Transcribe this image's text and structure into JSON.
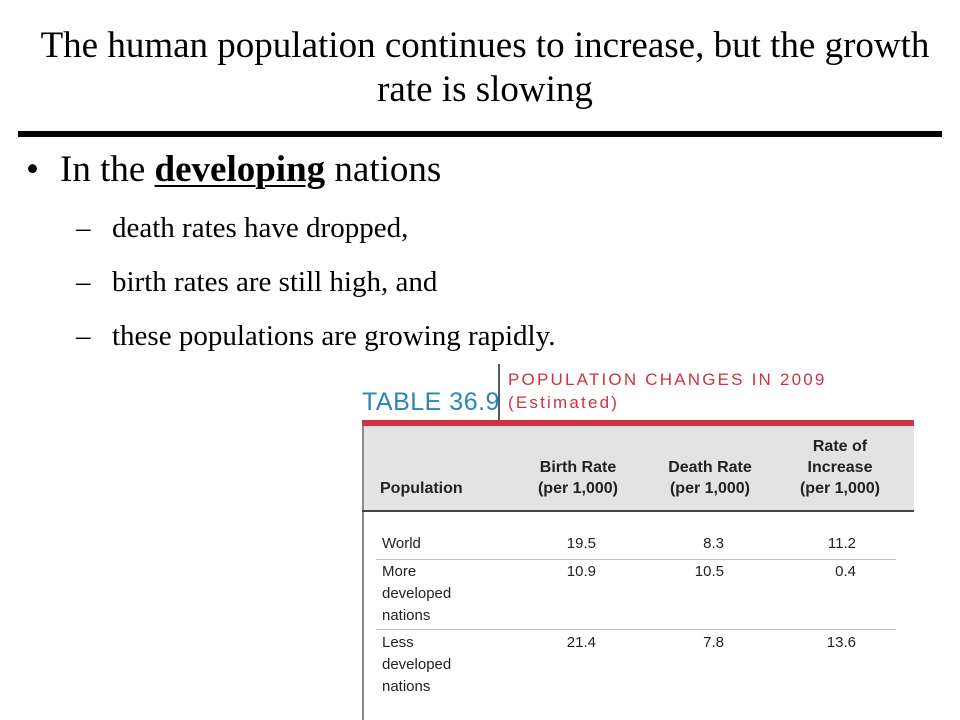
{
  "slide": {
    "title": "The human population continues to increase, but the growth rate is slowing",
    "bullet": {
      "prefix": "In the",
      "emphasis": "developing",
      "suffix": "nations"
    },
    "subpoints": [
      "death rates have dropped,",
      "birth rates are still high, and",
      "these populations are growing rapidly."
    ],
    "bullet_glyph": "•",
    "dash_glyph": "–"
  },
  "table": {
    "label": "TABLE 36.9",
    "title_line1": "POPULATION CHANGES IN 2009",
    "title_line2": "(Estimated)",
    "accent_color": "#cc3344",
    "label_color": "#2a86b8",
    "headers": {
      "population": "Population",
      "birth_rate": [
        "Birth Rate",
        "(per 1,000)"
      ],
      "death_rate": [
        "Death Rate",
        "(per 1,000)"
      ],
      "increase": [
        "Rate of",
        "Increase",
        "(per 1,000)"
      ]
    },
    "rows": [
      {
        "population": [
          "World"
        ],
        "birth": "19.5",
        "death": "8.3",
        "increase": "11.2"
      },
      {
        "population": [
          "More",
          "developed",
          "nations"
        ],
        "birth": "10.9",
        "death": "10.5",
        "increase": "0.4"
      },
      {
        "population": [
          "Less",
          "developed",
          "nations"
        ],
        "birth": "21.4",
        "death": "7.8",
        "increase": "13.6"
      }
    ]
  }
}
